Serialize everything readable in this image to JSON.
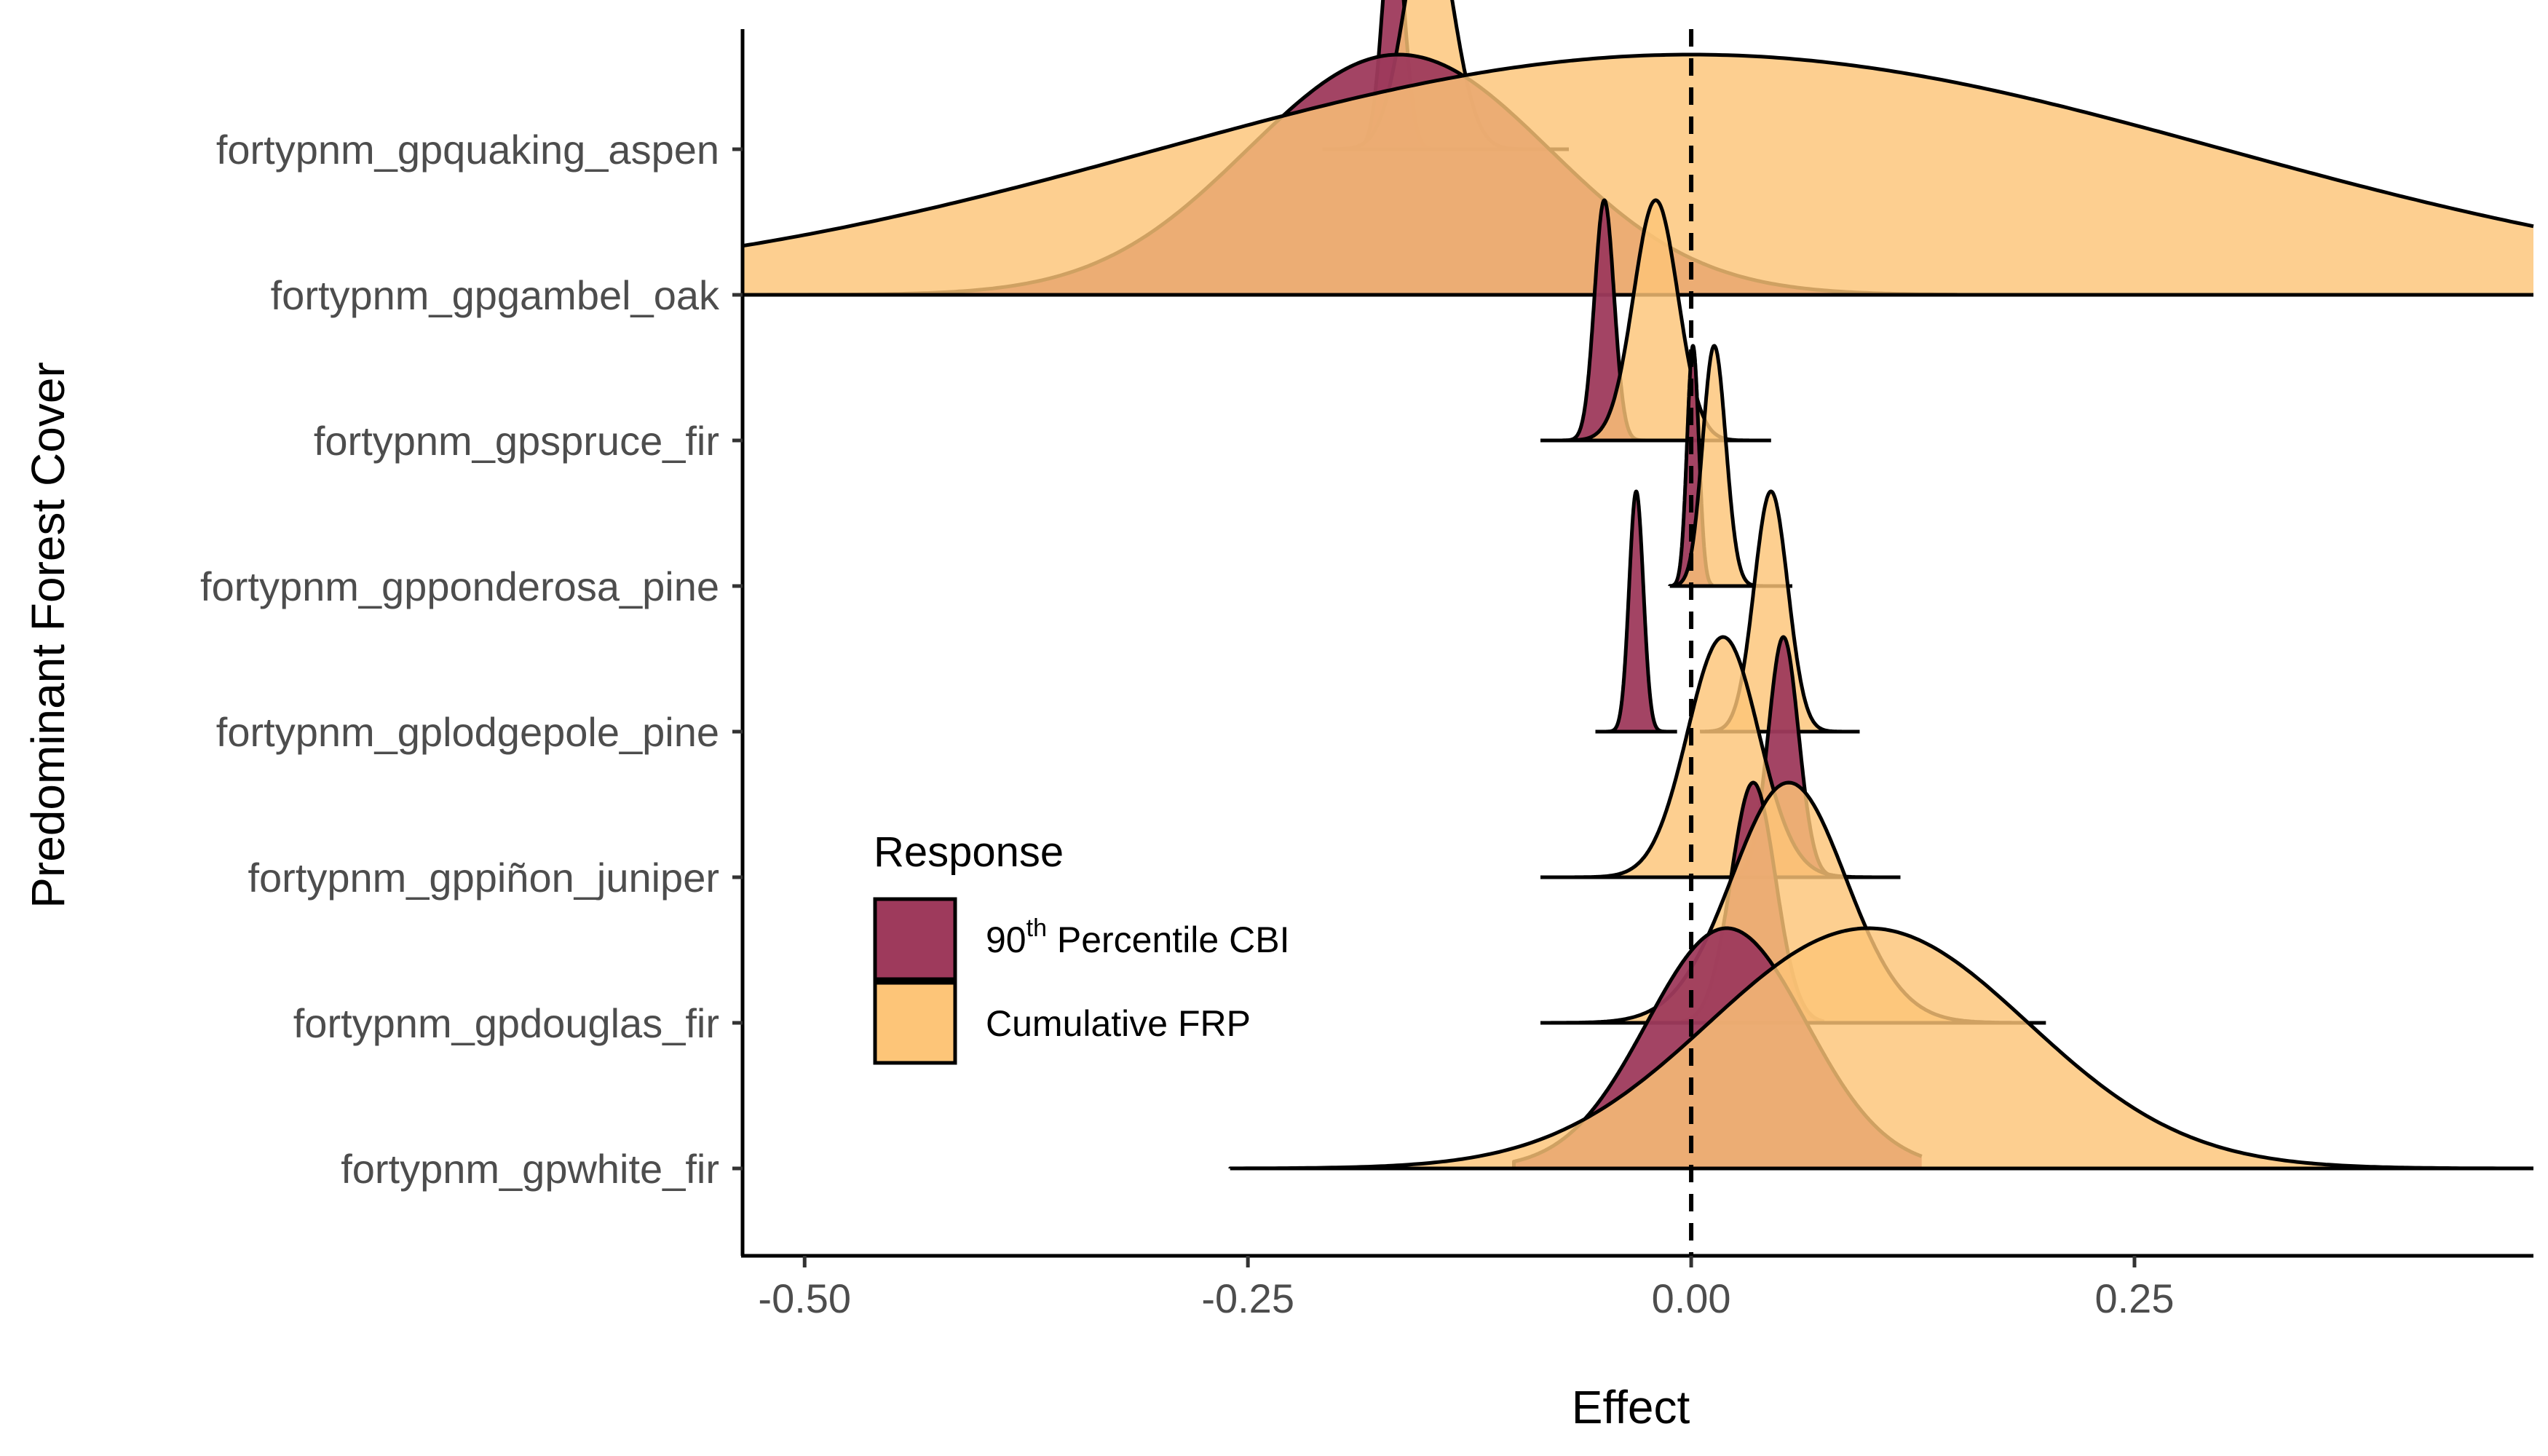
{
  "chart_data": {
    "type": "ridgeline",
    "xlabel": "Effect",
    "ylabel": "Predominant Forest Cover",
    "xlim": [
      -0.535,
      0.475
    ],
    "x_ticks": [
      -0.5,
      -0.25,
      0.0,
      0.25
    ],
    "x_tick_labels": [
      "-0.50",
      "-0.25",
      "0.00",
      "0.25"
    ],
    "reference_line": {
      "x": 0.0,
      "style": "dashed"
    },
    "grid": false,
    "categories": [
      "fortypnm_gpwhite_fir",
      "fortypnm_gpdouglas_fir",
      "fortypnm_gppiñon_juniper",
      "fortypnm_gplodgepole_pine",
      "fortypnm_gpponderosa_pine",
      "fortypnm_gpspruce_fir",
      "fortypnm_gpgambel_oak",
      "fortypnm_gpquaking_aspen"
    ],
    "legend": {
      "title": "Response",
      "placement": "bottom-left inside plot",
      "items": [
        {
          "label_main": "90",
          "label_sup": "th",
          "label_rest": " Percentile CBI",
          "color": "#9E3A5C"
        },
        {
          "label_main": "Cumulative FRP",
          "label_sup": "",
          "label_rest": "",
          "color": "#FDC578"
        }
      ]
    },
    "series": [
      {
        "name": "90th Percentile CBI",
        "color": "#9E3A5C",
        "distributions": [
          {
            "category": "fortypnm_gpwhite_fir",
            "mean": 0.02,
            "sd": 0.045,
            "min": -0.1,
            "max": 0.13
          },
          {
            "category": "fortypnm_gpdouglas_fir",
            "mean": 0.035,
            "sd": 0.0125,
            "min": -0.005,
            "max": 0.075
          },
          {
            "category": "fortypnm_gppiñon_juniper",
            "mean": 0.052,
            "sd": 0.0085,
            "min": 0.0,
            "max": 0.1
          },
          {
            "category": "fortypnm_gplodgepole_pine",
            "mean": -0.031,
            "sd": 0.004,
            "min": -0.054,
            "max": -0.008
          },
          {
            "category": "fortypnm_gpponderosa_pine",
            "mean": 0.001,
            "sd": 0.0033,
            "min": -0.01,
            "max": 0.012
          },
          {
            "category": "fortypnm_gpspruce_fir",
            "mean": -0.049,
            "sd": 0.0055,
            "min": -0.075,
            "max": -0.02
          },
          {
            "category": "fortypnm_gpgambel_oak",
            "mean": -0.165,
            "sd": 0.085,
            "min": -0.535,
            "max": 0.15
          },
          {
            "category": "fortypnm_gpquaking_aspen",
            "mean": -0.168,
            "sd": 0.006,
            "min": -0.198,
            "max": -0.118
          }
        ]
      },
      {
        "name": "Cumulative FRP",
        "color": "#FDC578",
        "distributions": [
          {
            "category": "fortypnm_gpwhite_fir",
            "mean": 0.1,
            "sd": 0.09,
            "min": -0.26,
            "max": 0.475
          },
          {
            "category": "fortypnm_gpdouglas_fir",
            "mean": 0.055,
            "sd": 0.032,
            "min": -0.085,
            "max": 0.2
          },
          {
            "category": "fortypnm_gppiñon_juniper",
            "mean": 0.018,
            "sd": 0.02,
            "min": -0.085,
            "max": 0.118
          },
          {
            "category": "fortypnm_gplodgepole_pine",
            "mean": 0.045,
            "sd": 0.0095,
            "min": 0.005,
            "max": 0.095
          },
          {
            "category": "fortypnm_gpponderosa_pine",
            "mean": 0.013,
            "sd": 0.0065,
            "min": -0.012,
            "max": 0.057
          },
          {
            "category": "fortypnm_gpspruce_fir",
            "mean": -0.02,
            "sd": 0.0125,
            "min": -0.085,
            "max": 0.045
          },
          {
            "category": "fortypnm_gpgambel_oak",
            "mean": 0.0,
            "sd": 0.3,
            "min": -0.535,
            "max": 0.475
          },
          {
            "category": "fortypnm_gpquaking_aspen",
            "mean": -0.148,
            "sd": 0.0135,
            "min": -0.208,
            "max": -0.069
          }
        ]
      }
    ]
  }
}
